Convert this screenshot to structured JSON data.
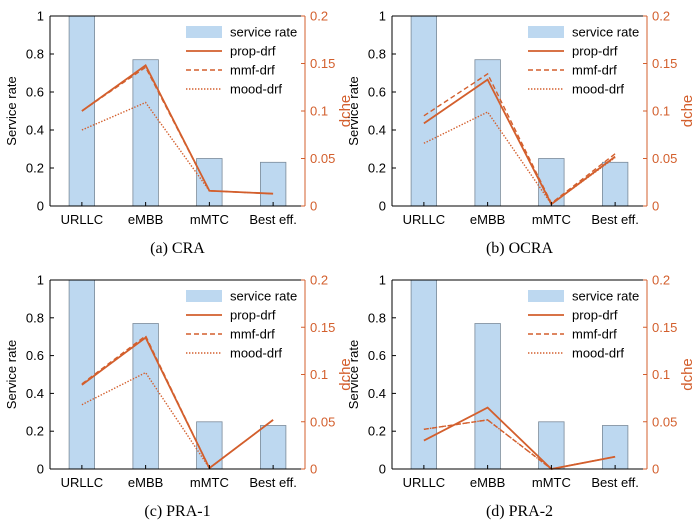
{
  "colors": {
    "bar_fill": "#bdd8f0",
    "bar_edge": "#7a8a99",
    "accent": "#d35f2d",
    "axis": "#000000"
  },
  "chart_data": [
    {
      "type": "bar+line",
      "caption": "(a) CRA",
      "categories": [
        "URLLC",
        "eMBB",
        "mMTC",
        "Best eff."
      ],
      "ylabel": "Service rate",
      "ylabel_right": "dche",
      "ylim": [
        0,
        1
      ],
      "ylim_right": [
        0,
        0.2
      ],
      "yticks": [
        "0",
        "0.2",
        "0.4",
        "0.6",
        "0.8",
        "1"
      ],
      "yticks_right": [
        "0",
        "0.05",
        "0.1",
        "0.15",
        "0.2"
      ],
      "legend_position": "top-right",
      "legend": [
        "service rate",
        "prop-drf",
        "mmf-drf",
        "mood-drf"
      ],
      "bars": {
        "name": "service rate",
        "values": [
          1.0,
          0.77,
          0.25,
          0.23
        ]
      },
      "series": [
        {
          "name": "prop-drf",
          "style": "solid",
          "values": [
            0.1,
            0.148,
            0.016,
            0.013
          ]
        },
        {
          "name": "mmf-drf",
          "style": "dashed",
          "values": [
            0.1,
            0.146,
            0.016,
            0.013
          ]
        },
        {
          "name": "mood-drf",
          "style": "dotted",
          "values": [
            0.08,
            0.109,
            0.016,
            0.013
          ]
        }
      ]
    },
    {
      "type": "bar+line",
      "caption": "(b) OCRA",
      "categories": [
        "URLLC",
        "eMBB",
        "mMTC",
        "Best eff."
      ],
      "ylabel": "Service rate",
      "ylabel_right": "dche",
      "ylim": [
        0,
        1
      ],
      "ylim_right": [
        0,
        0.2
      ],
      "yticks": [
        "0",
        "0.2",
        "0.4",
        "0.6",
        "0.8",
        "1"
      ],
      "yticks_right": [
        "0",
        "0.05",
        "0.1",
        "0.15",
        "0.2"
      ],
      "legend_position": "top-right",
      "legend": [
        "service rate",
        "prop-drf",
        "mmf-drf",
        "mood-drf"
      ],
      "bars": {
        "name": "service rate",
        "values": [
          1.0,
          0.77,
          0.25,
          0.23
        ]
      },
      "series": [
        {
          "name": "prop-drf",
          "style": "solid",
          "values": [
            0.087,
            0.133,
            0.002,
            0.052
          ]
        },
        {
          "name": "mmf-drf",
          "style": "dashed",
          "values": [
            0.095,
            0.139,
            0.003,
            0.055
          ]
        },
        {
          "name": "mood-drf",
          "style": "dotted",
          "values": [
            0.066,
            0.099,
            0.002,
            0.051
          ]
        }
      ]
    },
    {
      "type": "bar+line",
      "caption": "(c) PRA-1",
      "categories": [
        "URLLC",
        "eMBB",
        "mMTC",
        "Best eff."
      ],
      "ylabel": "Service rate",
      "ylabel_right": "dche",
      "ylim": [
        0,
        1
      ],
      "ylim_right": [
        0,
        0.2
      ],
      "yticks": [
        "0",
        "0.2",
        "0.4",
        "0.6",
        "0.8",
        "1"
      ],
      "yticks_right": [
        "0",
        "0.05",
        "0.1",
        "0.15",
        "0.2"
      ],
      "legend_position": "top-right",
      "legend": [
        "service rate",
        "prop-drf",
        "mmf-drf",
        "mood-drf"
      ],
      "bars": {
        "name": "service rate",
        "values": [
          1.0,
          0.77,
          0.25,
          0.23
        ]
      },
      "series": [
        {
          "name": "prop-drf",
          "style": "solid",
          "values": [
            0.089,
            0.139,
            0.001,
            0.052
          ]
        },
        {
          "name": "mmf-drf",
          "style": "dashed",
          "values": [
            0.09,
            0.141,
            0.001,
            0.052
          ]
        },
        {
          "name": "mood-drf",
          "style": "dotted",
          "values": [
            0.068,
            0.102,
            0.001,
            0.052
          ]
        }
      ]
    },
    {
      "type": "bar+line",
      "caption": "(d) PRA-2",
      "categories": [
        "URLLC",
        "eMBB",
        "mMTC",
        "Best eff."
      ],
      "ylabel": "Service rate",
      "ylabel_right": "dche",
      "ylim": [
        0,
        1
      ],
      "ylim_right": [
        0,
        0.2
      ],
      "yticks": [
        "0",
        "0.2",
        "0.4",
        "0.6",
        "0.8",
        "1"
      ],
      "yticks_right": [
        "0",
        "0.05",
        "0.1",
        "0.15",
        "0.2"
      ],
      "legend_position": "top-right",
      "legend": [
        "service rate",
        "prop-drf",
        "mmf-drf",
        "mood-drf"
      ],
      "bars": {
        "name": "service rate",
        "values": [
          1.0,
          0.77,
          0.25,
          0.23
        ]
      },
      "series": [
        {
          "name": "prop-drf",
          "style": "solid",
          "values": [
            0.03,
            0.065,
            0.0,
            0.013
          ]
        },
        {
          "name": "mmf-drf",
          "style": "dashed",
          "values": [
            0.042,
            0.052,
            0.0,
            0.013
          ]
        },
        {
          "name": "mood-drf",
          "style": "dotted",
          "values": [
            0.042,
            0.052,
            0.0,
            0.013
          ]
        }
      ]
    }
  ]
}
